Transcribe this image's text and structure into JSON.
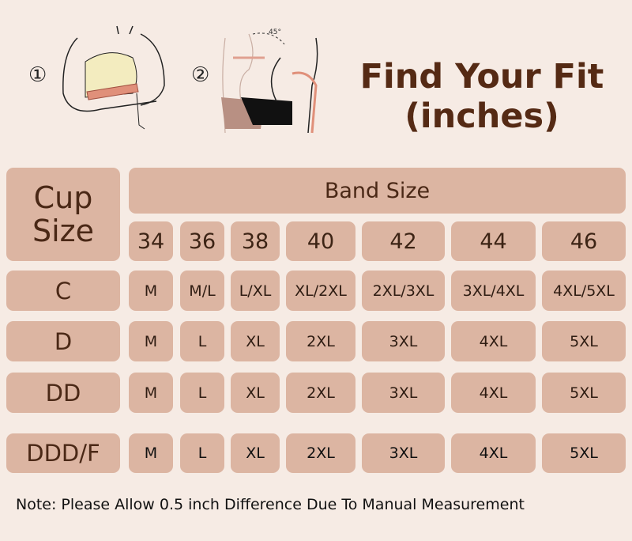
{
  "steps": [
    {
      "marker": "①"
    },
    {
      "marker": "②",
      "angle_label": "45°"
    }
  ],
  "title": {
    "line1": "Find Your Fit",
    "line2": "(inches)"
  },
  "table": {
    "cup_header": {
      "line1": "Cup",
      "line2": "Size"
    },
    "band_header": "Band Size",
    "bands": [
      "34",
      "36",
      "38",
      "40",
      "42",
      "44",
      "46"
    ],
    "rows": [
      {
        "cup": "C",
        "sizes": [
          "M",
          "M/L",
          "L/XL",
          "XL/2XL",
          "2XL/3XL",
          "3XL/4XL",
          "4XL/5XL"
        ]
      },
      {
        "cup": "D",
        "sizes": [
          "M",
          "L",
          "XL",
          "2XL",
          "3XL",
          "4XL",
          "5XL"
        ]
      },
      {
        "cup": "DD",
        "sizes": [
          "M",
          "L",
          "XL",
          "2XL",
          "3XL",
          "4XL",
          "5XL"
        ]
      },
      {
        "cup": "DDD/F",
        "sizes": [
          "M",
          "L",
          "XL",
          "2XL",
          "3XL",
          "4XL",
          "5XL"
        ]
      }
    ]
  },
  "note": "Note: Please Allow 0.5 inch Difference Due To Manual Measurement",
  "colors": {
    "background": "#f6ebe4",
    "cell": "#dcb5a2",
    "title": "#552a14",
    "tape": "#d9826e"
  }
}
